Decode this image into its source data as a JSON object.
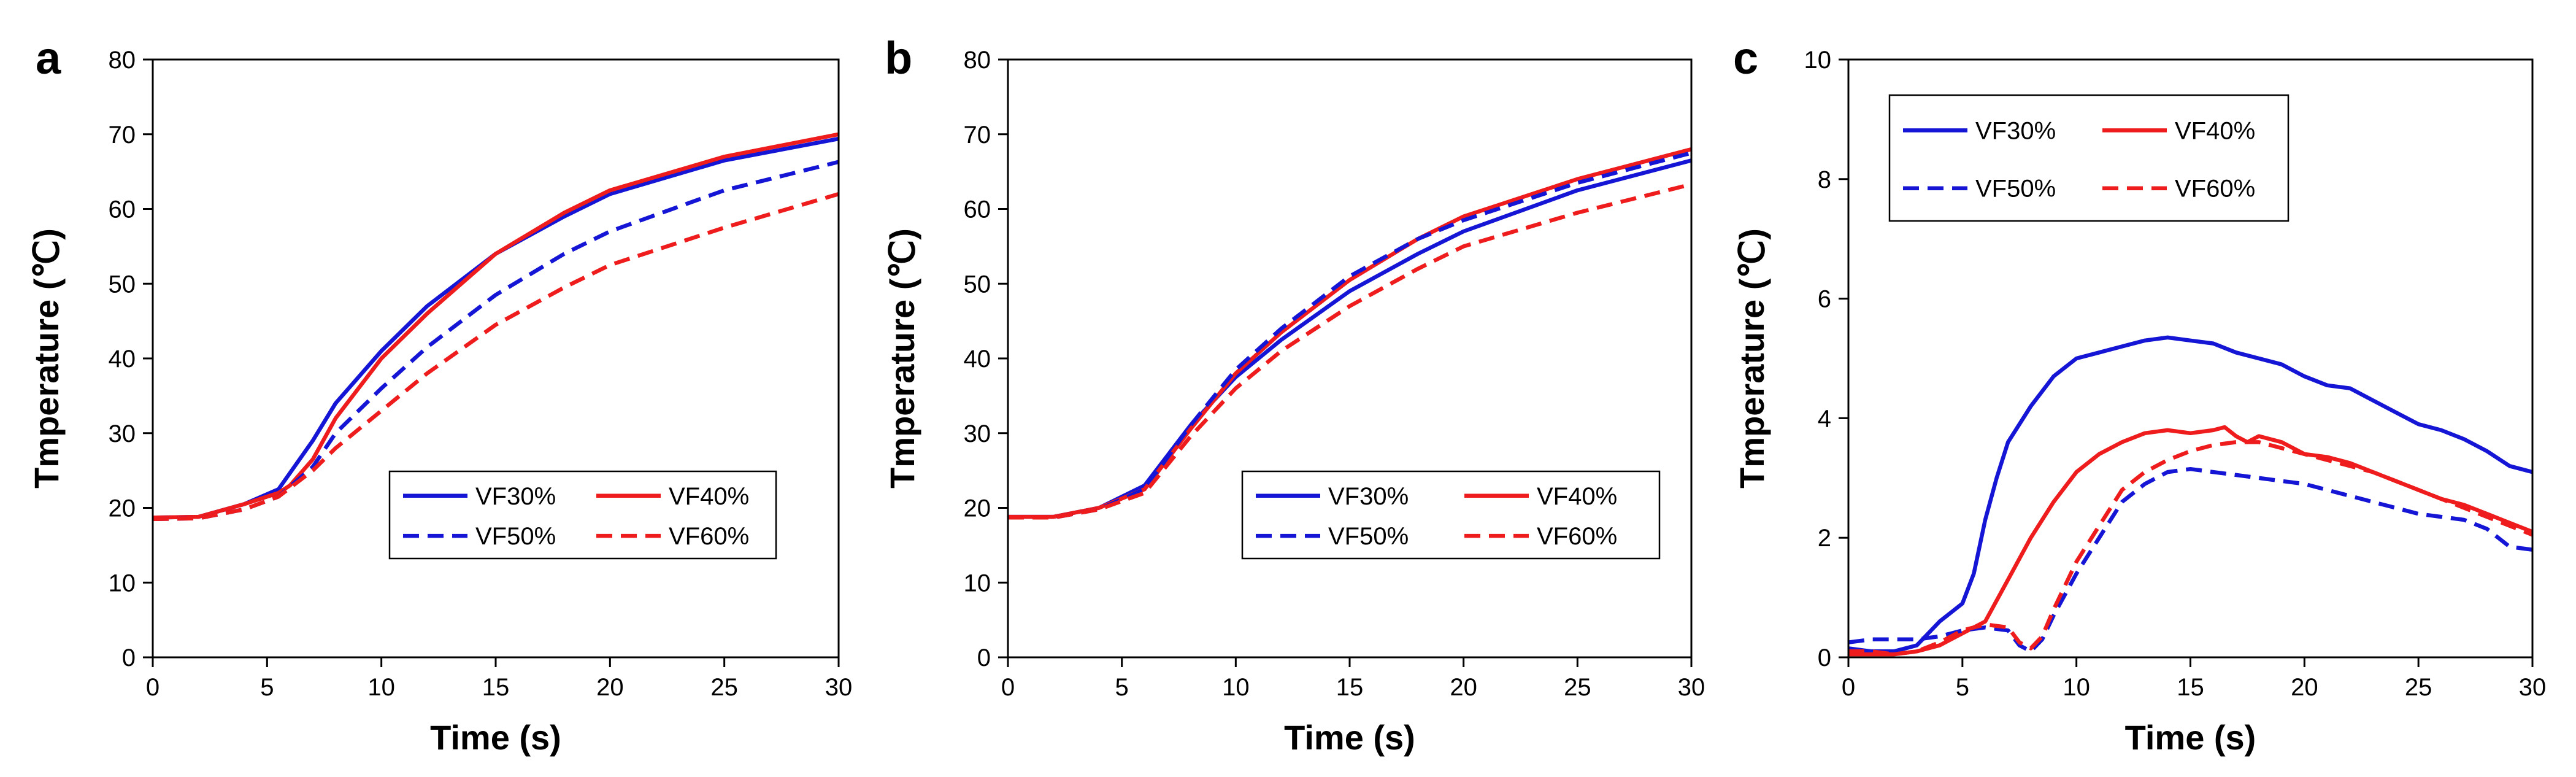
{
  "chart_data": [
    {
      "panel_label": "a",
      "type": "line",
      "xlabel": "Time (s)",
      "ylabel": "Tmperature (℃)",
      "xlim": [
        0,
        30
      ],
      "ylim": [
        0,
        80
      ],
      "xticks": [
        "0",
        "5",
        "10",
        "15",
        "20",
        "25",
        "30"
      ],
      "yticks": [
        "0",
        "10",
        "20",
        "30",
        "40",
        "50",
        "60",
        "70",
        "80"
      ],
      "legend_position": "lower-right",
      "series": [
        {
          "name": "VF30%",
          "color": "#1515d6",
          "dash": "solid",
          "x": [
            0,
            2,
            4,
            5.5,
            7,
            8,
            10,
            12,
            15,
            18,
            20,
            25,
            30
          ],
          "y": [
            18.7,
            18.8,
            20.5,
            22.5,
            29,
            34,
            41,
            47,
            54,
            59,
            62,
            66.5,
            69.4
          ]
        },
        {
          "name": "VF40%",
          "color": "#ee1c1c",
          "dash": "solid",
          "x": [
            0,
            2,
            4,
            5.5,
            6,
            7,
            8,
            10,
            12,
            15,
            18,
            20,
            25,
            30
          ],
          "y": [
            18.7,
            18.8,
            20.5,
            22,
            23,
            26.5,
            32,
            40,
            46,
            54,
            59.5,
            62.5,
            67,
            70
          ]
        },
        {
          "name": "VF50%",
          "color": "#1515d6",
          "dash": "dashed",
          "x": [
            0,
            2,
            4,
            5.5,
            7,
            8,
            10,
            12,
            15,
            18,
            20,
            25,
            30
          ],
          "y": [
            18.5,
            18.6,
            19.8,
            21.5,
            25.5,
            30,
            36,
            41.5,
            48.5,
            54,
            57,
            62.5,
            66.3
          ]
        },
        {
          "name": "VF60%",
          "color": "#ee1c1c",
          "dash": "dashed",
          "x": [
            0,
            2,
            4,
            5.5,
            7,
            8,
            10,
            12,
            15,
            18,
            20,
            25,
            30
          ],
          "y": [
            18.5,
            18.6,
            19.8,
            21.5,
            25,
            28,
            33,
            38,
            44.5,
            49.5,
            52.5,
            57.5,
            62
          ]
        }
      ]
    },
    {
      "panel_label": "b",
      "type": "line",
      "xlabel": "Time (s)",
      "ylabel": "Tmperature (℃)",
      "xlim": [
        0,
        30
      ],
      "ylim": [
        0,
        80
      ],
      "xticks": [
        "0",
        "5",
        "10",
        "15",
        "20",
        "25",
        "30"
      ],
      "yticks": [
        "0",
        "10",
        "20",
        "30",
        "40",
        "50",
        "60",
        "70",
        "80"
      ],
      "legend_position": "lower-right",
      "series": [
        {
          "name": "VF30%",
          "color": "#1515d6",
          "dash": "solid",
          "x": [
            0,
            2,
            4,
            6,
            8,
            10,
            12,
            15,
            18,
            20,
            25,
            30
          ],
          "y": [
            18.8,
            18.8,
            20,
            23,
            31,
            37.5,
            42.5,
            49,
            54,
            57,
            62.5,
            66.5
          ]
        },
        {
          "name": "VF40%",
          "color": "#ee1c1c",
          "dash": "solid",
          "x": [
            0,
            2,
            4,
            6,
            8,
            10,
            12,
            15,
            18,
            20,
            25,
            30
          ],
          "y": [
            18.8,
            18.8,
            20,
            22.5,
            30.5,
            38,
            43.5,
            50.5,
            56,
            59,
            64,
            68
          ]
        },
        {
          "name": "VF50%",
          "color": "#1515d6",
          "dash": "dashed",
          "x": [
            0,
            2,
            4,
            6,
            8,
            10,
            12,
            15,
            18,
            20,
            25,
            30
          ],
          "y": [
            18.7,
            18.7,
            19.8,
            22.5,
            31,
            38.5,
            44,
            51,
            56,
            58.5,
            63.5,
            67.5
          ]
        },
        {
          "name": "VF60%",
          "color": "#ee1c1c",
          "dash": "dashed",
          "x": [
            0,
            2,
            4,
            6,
            8,
            10,
            12,
            15,
            18,
            20,
            25,
            30
          ],
          "y": [
            18.7,
            18.7,
            19.8,
            22,
            29.5,
            36,
            41,
            47,
            52,
            55,
            59.5,
            63.3
          ]
        }
      ]
    },
    {
      "panel_label": "c",
      "type": "line",
      "xlabel": "Time (s)",
      "ylabel": "Tmperature (℃)",
      "xlim": [
        0,
        30
      ],
      "ylim": [
        0,
        10
      ],
      "xticks": [
        "0",
        "5",
        "10",
        "15",
        "20",
        "25",
        "30"
      ],
      "yticks": [
        "0",
        "2",
        "4",
        "6",
        "8",
        "10"
      ],
      "legend_position": "top-left",
      "series": [
        {
          "name": "VF30%",
          "color": "#1515d6",
          "dash": "solid",
          "x": [
            0,
            1,
            2,
            3,
            4,
            5,
            5.5,
            6,
            6.5,
            7,
            7.5,
            8,
            9,
            10,
            11,
            12,
            13,
            14,
            15,
            16,
            17,
            18,
            19,
            20,
            21,
            22,
            23,
            24,
            25,
            26,
            27,
            28,
            29,
            30
          ],
          "y": [
            0.15,
            0.1,
            0.1,
            0.2,
            0.6,
            0.9,
            1.4,
            2.3,
            3.0,
            3.6,
            3.9,
            4.2,
            4.7,
            5.0,
            5.1,
            5.2,
            5.3,
            5.35,
            5.3,
            5.25,
            5.1,
            5.0,
            4.9,
            4.7,
            4.55,
            4.5,
            4.3,
            4.1,
            3.9,
            3.8,
            3.65,
            3.45,
            3.2,
            3.1
          ]
        },
        {
          "name": "VF40%",
          "color": "#ee1c1c",
          "dash": "solid",
          "x": [
            0,
            1,
            2,
            3,
            4,
            5,
            6,
            7,
            8,
            9,
            10,
            11,
            12,
            13,
            14,
            15,
            16,
            16.5,
            17,
            17.5,
            18,
            19,
            20,
            21,
            22,
            23,
            24,
            25,
            26,
            27,
            28,
            29,
            30
          ],
          "y": [
            0.05,
            0.05,
            0.05,
            0.1,
            0.2,
            0.4,
            0.6,
            1.3,
            2.0,
            2.6,
            3.1,
            3.4,
            3.6,
            3.75,
            3.8,
            3.75,
            3.8,
            3.85,
            3.7,
            3.6,
            3.7,
            3.6,
            3.4,
            3.35,
            3.25,
            3.1,
            2.95,
            2.8,
            2.65,
            2.55,
            2.4,
            2.25,
            2.1
          ]
        },
        {
          "name": "VF50%",
          "color": "#1515d6",
          "dash": "dashed",
          "x": [
            0,
            1,
            2,
            3,
            4,
            5,
            6,
            7,
            7.5,
            8,
            8.5,
            9,
            10,
            11,
            12,
            13,
            14,
            15,
            16,
            17,
            18,
            19,
            20,
            21,
            22,
            23,
            24,
            25,
            26,
            27,
            28,
            29,
            30
          ],
          "y": [
            0.25,
            0.3,
            0.3,
            0.3,
            0.35,
            0.45,
            0.5,
            0.45,
            0.2,
            0.1,
            0.3,
            0.7,
            1.4,
            2.0,
            2.6,
            2.9,
            3.1,
            3.15,
            3.1,
            3.05,
            3.0,
            2.95,
            2.9,
            2.8,
            2.7,
            2.6,
            2.5,
            2.4,
            2.35,
            2.3,
            2.15,
            1.85,
            1.8
          ]
        },
        {
          "name": "VF60%",
          "color": "#ee1c1c",
          "dash": "dashed",
          "x": [
            0,
            1,
            2,
            3,
            4,
            5,
            6,
            7,
            7.5,
            8,
            8.5,
            9,
            10,
            11,
            12,
            13,
            14,
            15,
            16,
            17,
            18,
            19,
            20,
            21,
            22,
            23,
            24,
            25,
            26,
            27,
            28,
            29,
            30
          ],
          "y": [
            0.1,
            0.1,
            0.05,
            0.1,
            0.25,
            0.45,
            0.55,
            0.5,
            0.25,
            0.15,
            0.35,
            0.8,
            1.6,
            2.2,
            2.8,
            3.1,
            3.3,
            3.45,
            3.55,
            3.6,
            3.6,
            3.5,
            3.4,
            3.3,
            3.2,
            3.1,
            2.95,
            2.8,
            2.65,
            2.5,
            2.35,
            2.2,
            2.05
          ]
        }
      ]
    }
  ]
}
